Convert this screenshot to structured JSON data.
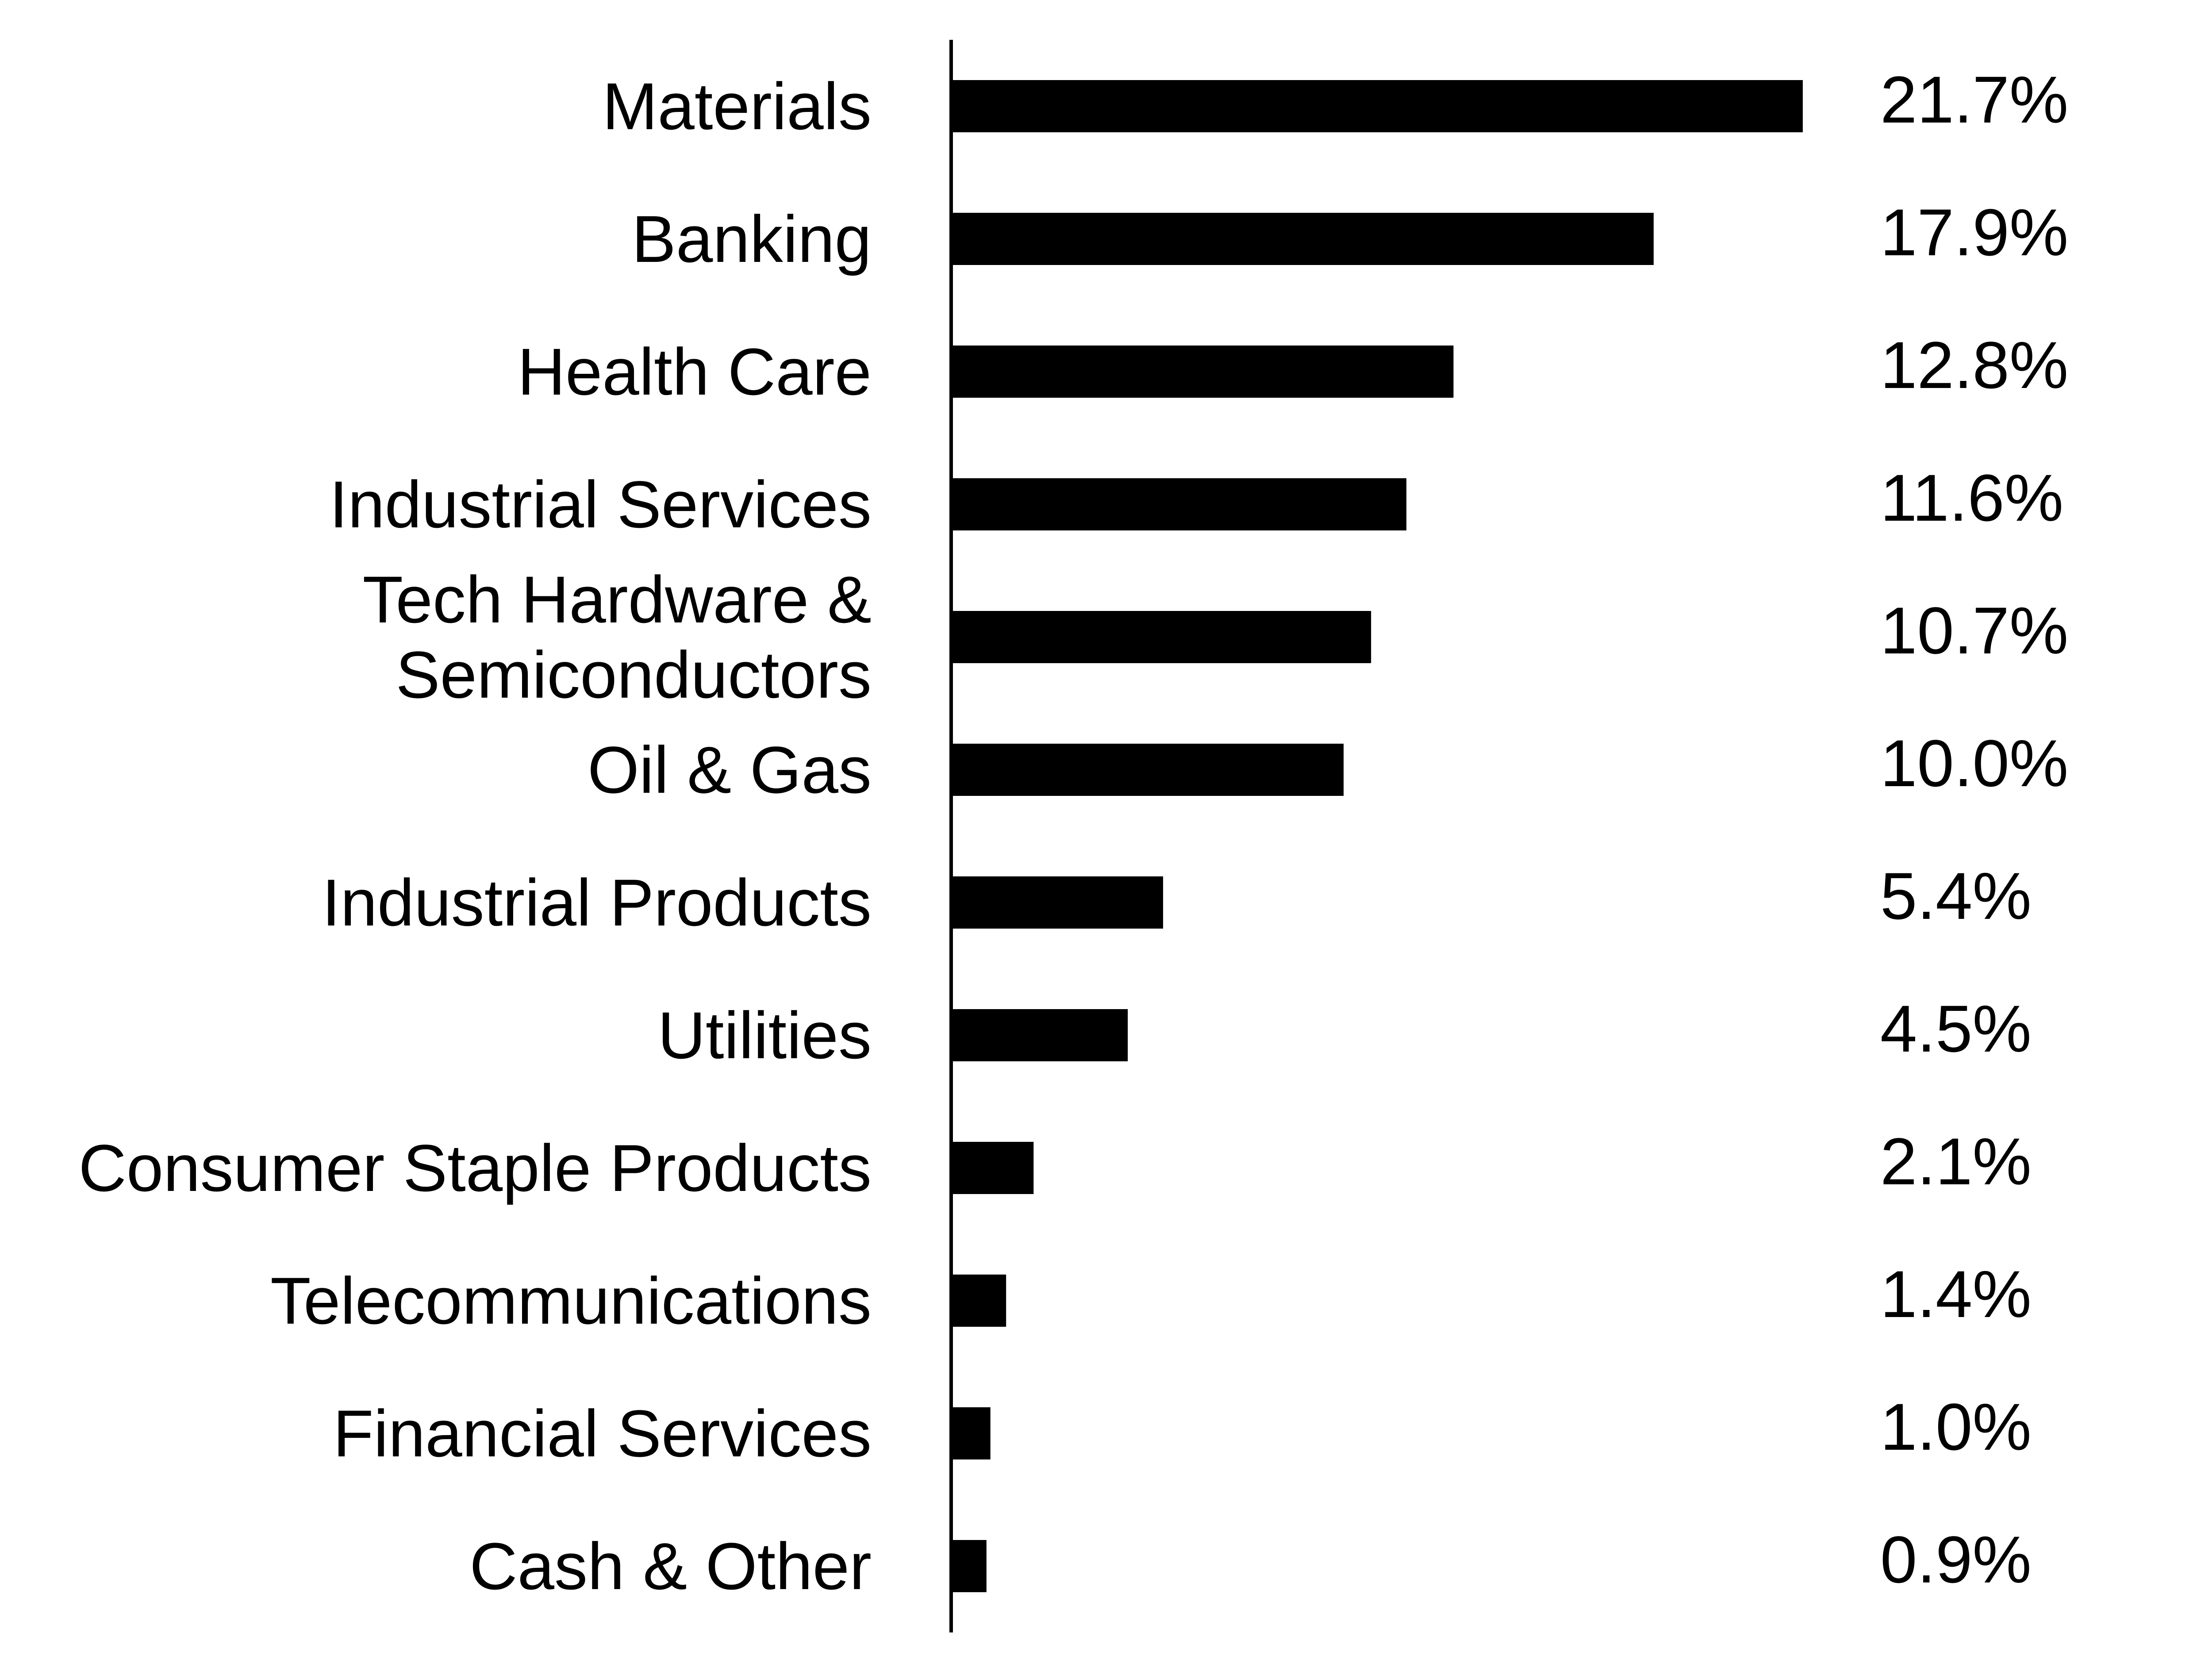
{
  "chart_data": {
    "type": "bar",
    "orientation": "horizontal",
    "categories": [
      [
        "Materials"
      ],
      [
        "Banking"
      ],
      [
        "Health Care"
      ],
      [
        "Industrial Services"
      ],
      [
        "Tech Hardware &",
        "Semiconductors"
      ],
      [
        "Oil & Gas"
      ],
      [
        "Industrial Products"
      ],
      [
        "Utilities"
      ],
      [
        "Consumer Staple Products"
      ],
      [
        "Telecommunications"
      ],
      [
        "Financial Services"
      ],
      [
        "Cash & Other"
      ]
    ],
    "values": [
      21.7,
      17.9,
      12.8,
      11.6,
      10.7,
      10.0,
      5.4,
      4.5,
      2.1,
      1.4,
      1.0,
      0.9
    ],
    "value_labels": [
      "21.7%",
      "17.9%",
      "12.8%",
      "11.6%",
      "10.7%",
      "10.0%",
      "5.4%",
      "4.5%",
      "2.1%",
      "1.4%",
      "1.0%",
      "0.9%"
    ],
    "bar_color": "#000000",
    "grid": false,
    "legend": "none"
  }
}
